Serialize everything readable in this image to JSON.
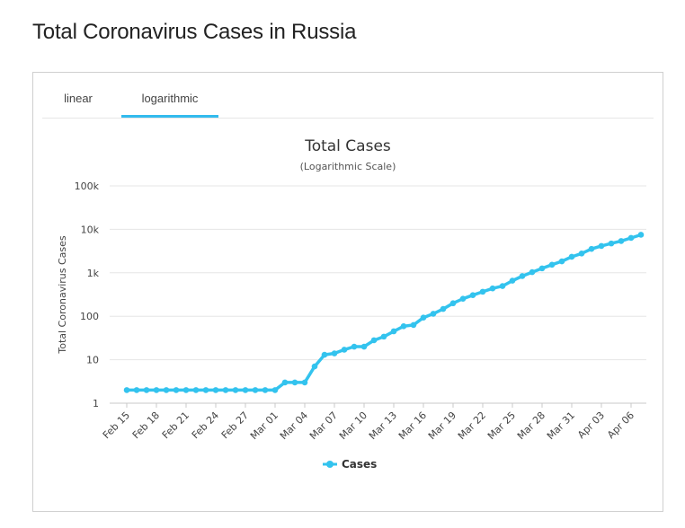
{
  "page": {
    "title": "Total Coronavirus Cases in Russia"
  },
  "tabs": [
    {
      "label": "linear",
      "active": false
    },
    {
      "label": "logarithmic",
      "active": true
    }
  ],
  "colors": {
    "series": "#33c3ee",
    "tab_accent": "#33bbee",
    "grid": "#e6e6e6"
  },
  "chart_data": {
    "type": "line",
    "title": "Total Cases",
    "subtitle": "(Logarithmic Scale)",
    "ylabel": "Total Coronavirus Cases",
    "xlabel": "",
    "yscale": "log",
    "ylim": [
      1,
      100000
    ],
    "y_ticks": [
      1,
      10,
      100,
      1000,
      10000,
      100000
    ],
    "y_tick_labels": [
      "1",
      "10",
      "100",
      "1k",
      "10k",
      "100k"
    ],
    "x_tick_labels": [
      "Feb 15",
      "Feb 18",
      "Feb 21",
      "Feb 24",
      "Feb 27",
      "Mar 01",
      "Mar 04",
      "Mar 07",
      "Mar 10",
      "Mar 13",
      "Mar 16",
      "Mar 19",
      "Mar 22",
      "Mar 25",
      "Mar 28",
      "Mar 31",
      "Apr 03",
      "Apr 06"
    ],
    "legend": {
      "position": "bottom",
      "entries": [
        "Cases"
      ]
    },
    "grid": true,
    "categories": [
      "Feb 15",
      "Feb 16",
      "Feb 17",
      "Feb 18",
      "Feb 19",
      "Feb 20",
      "Feb 21",
      "Feb 22",
      "Feb 23",
      "Feb 24",
      "Feb 25",
      "Feb 26",
      "Feb 27",
      "Feb 28",
      "Feb 29",
      "Mar 01",
      "Mar 02",
      "Mar 03",
      "Mar 04",
      "Mar 05",
      "Mar 06",
      "Mar 07",
      "Mar 08",
      "Mar 09",
      "Mar 10",
      "Mar 11",
      "Mar 12",
      "Mar 13",
      "Mar 14",
      "Mar 15",
      "Mar 16",
      "Mar 17",
      "Mar 18",
      "Mar 19",
      "Mar 20",
      "Mar 21",
      "Mar 22",
      "Mar 23",
      "Mar 24",
      "Mar 25",
      "Mar 26",
      "Mar 27",
      "Mar 28",
      "Mar 29",
      "Mar 30",
      "Mar 31",
      "Apr 01",
      "Apr 02",
      "Apr 03",
      "Apr 04",
      "Apr 05",
      "Apr 06",
      "Apr 07"
    ],
    "series": [
      {
        "name": "Cases",
        "values": [
          2,
          2,
          2,
          2,
          2,
          2,
          2,
          2,
          2,
          2,
          2,
          2,
          2,
          2,
          2,
          2,
          3,
          3,
          3,
          7,
          13,
          14,
          17,
          20,
          20,
          28,
          34,
          45,
          59,
          63,
          93,
          114,
          147,
          199,
          253,
          306,
          367,
          438,
          495,
          658,
          840,
          1036,
          1264,
          1534,
          1836,
          2337,
          2777,
          3548,
          4149,
          4731,
          5389,
          6343,
          7497
        ]
      }
    ]
  }
}
